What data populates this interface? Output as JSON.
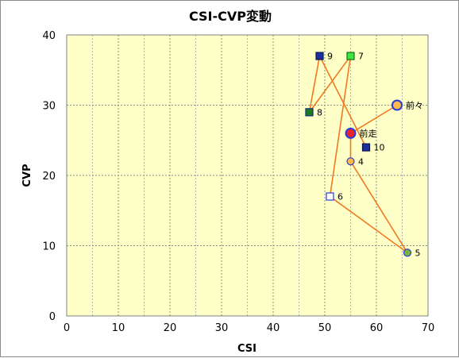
{
  "chart_data": {
    "type": "scatter",
    "title": "CSI-CVP変動",
    "xlabel": "CSI",
    "ylabel": "CVP",
    "xlim": [
      0,
      70
    ],
    "ylim": [
      0,
      40
    ],
    "xticks": [
      0,
      10,
      20,
      30,
      40,
      50,
      60,
      70
    ],
    "yticks": [
      0,
      10,
      20,
      30,
      40
    ],
    "grid": true,
    "plot_background": "#ffffc8",
    "line_color": "#f07820",
    "path_order": [
      "前々",
      "前走",
      "4",
      "5",
      "6",
      "7",
      "8",
      "9",
      "10"
    ],
    "points": [
      {
        "label": "前々",
        "x": 64,
        "y": 30,
        "marker": "circle-large",
        "fill": "#ffb84a",
        "stroke": "#2b3bd6"
      },
      {
        "label": "前走",
        "x": 55,
        "y": 26,
        "marker": "circle-large",
        "fill": "#e8232e",
        "stroke": "#2b3bd6"
      },
      {
        "label": "4",
        "x": 55,
        "y": 22,
        "marker": "circle",
        "fill": "#f9b94b",
        "stroke": "#2b3bd6"
      },
      {
        "label": "5",
        "x": 66,
        "y": 9,
        "marker": "circle",
        "fill": "#78b43c",
        "stroke": "#2b3bd6"
      },
      {
        "label": "6",
        "x": 51,
        "y": 17,
        "marker": "square",
        "fill": "#ffffff",
        "stroke": "#2b3bd6"
      },
      {
        "label": "7",
        "x": 55,
        "y": 37,
        "marker": "square",
        "fill": "#3ce63c",
        "stroke": "#1a6b1a"
      },
      {
        "label": "8",
        "x": 47,
        "y": 29,
        "marker": "square",
        "fill": "#1e7a1e",
        "stroke": "#0b2a7a"
      },
      {
        "label": "9",
        "x": 49,
        "y": 37,
        "marker": "square",
        "fill": "#1b2f9e",
        "stroke": "#0b1450"
      },
      {
        "label": "10",
        "x": 58,
        "y": 24,
        "marker": "square",
        "fill": "#1b2f9e",
        "stroke": "#0b1450"
      }
    ]
  }
}
